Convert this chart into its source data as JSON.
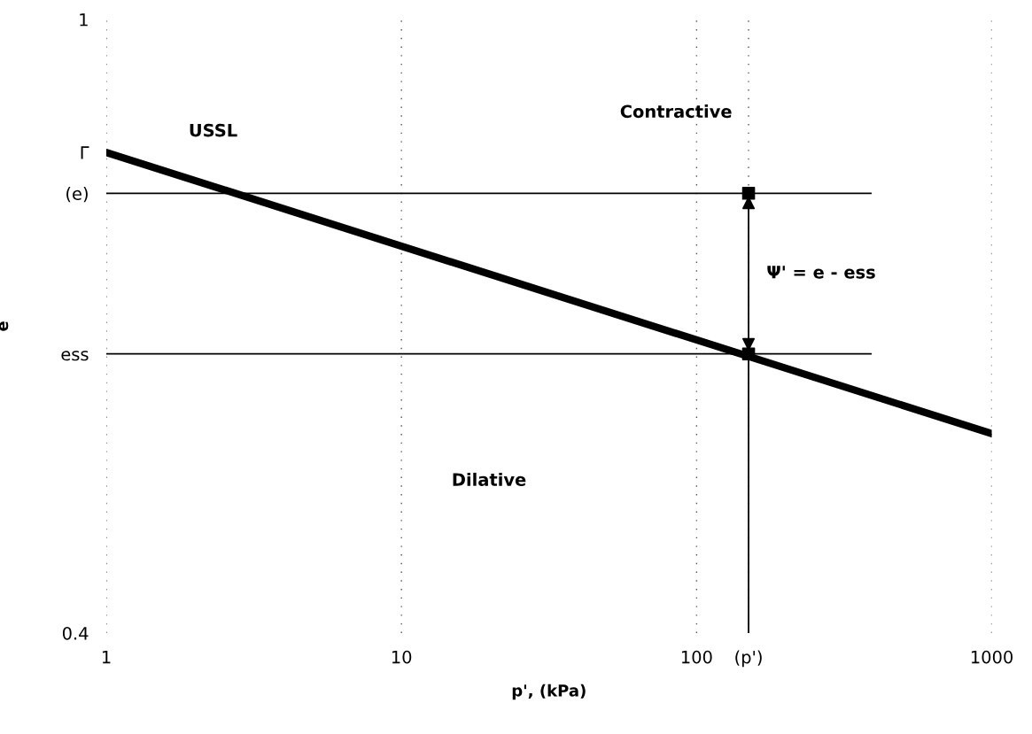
{
  "chart_data": {
    "type": "line",
    "xlabel": "p', (kPa)",
    "ylabel": "e",
    "log": "x",
    "xlim": [
      1,
      1000
    ],
    "ylim": [
      0.4,
      1
    ],
    "xticks": [
      1,
      10,
      100,
      1000,
      {
        "value": 150,
        "label": "(p')"
      }
    ],
    "yticks": [
      1,
      {
        "value": 0.4,
        "label": "0.4"
      },
      {
        "value": 0.87,
        "label": "Γ"
      },
      {
        "value": 0.83,
        "label": "(e)"
      },
      {
        "value": 0.673,
        "label": "ess"
      }
    ],
    "grid": "x",
    "series": [
      {
        "name": "USSL",
        "color": "#000000",
        "x": [
          1,
          1000
        ],
        "values": [
          0.87,
          0.595
        ]
      },
      {
        "type": "line",
        "color": "#000000",
        "x": [
          1,
          390
        ],
        "values": [
          0.83,
          0.83
        ]
      },
      {
        "type": "line",
        "color": "#000000",
        "x": [
          1,
          390
        ],
        "values": [
          0.673,
          0.673
        ]
      },
      {
        "type": "line",
        "color": "#000000",
        "x": [
          150,
          150
        ],
        "values": [
          0.673,
          0.4
        ]
      },
      {
        "type": "scatter",
        "color": "#000000",
        "marker": "square",
        "x": [
          150,
          150
        ],
        "values": [
          0.83,
          0.673
        ]
      }
    ],
    "annotations": [
      "Contractive",
      "Dilative",
      "Ψ' = e - ess"
    ]
  }
}
